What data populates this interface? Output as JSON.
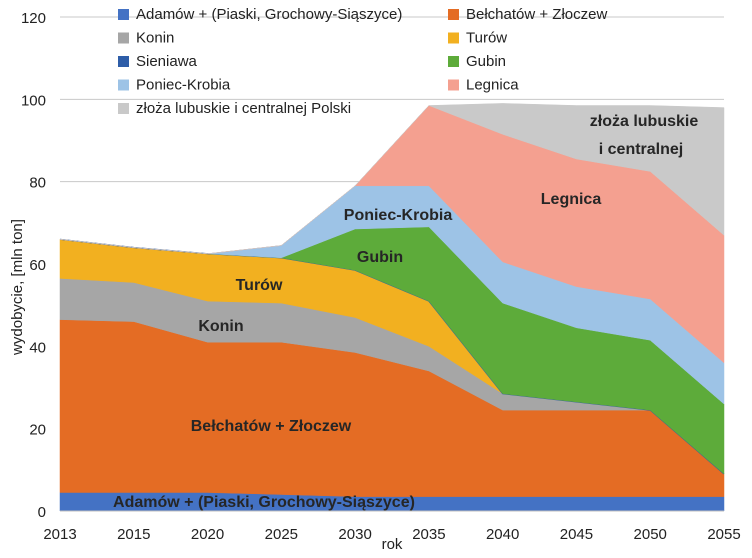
{
  "chart_data": {
    "type": "area",
    "stacked": true,
    "xlabel": "rok",
    "ylabel": "wydobycie, [mln ton]",
    "ylim": [
      0,
      120
    ],
    "yticks": [
      0,
      20,
      40,
      60,
      80,
      100,
      120
    ],
    "x": [
      "2013",
      "2015",
      "2020",
      "2025",
      "2030",
      "2035",
      "2040",
      "2045",
      "2050",
      "2055"
    ],
    "grid": "horizontal",
    "legend_position": "top-left",
    "series": [
      {
        "name": "Adamów + (Piaski, Grochowy-Siąszyce)",
        "color": "#4472C4",
        "values": [
          4.5,
          4.5,
          4.5,
          4,
          3.5,
          3.5,
          3.5,
          3.5,
          3.5,
          3.5
        ]
      },
      {
        "name": "Bełchatów + Złoczew",
        "color": "#E46C24",
        "values": [
          42,
          41.5,
          36.5,
          37,
          35,
          30.5,
          21,
          21,
          21,
          5.5
        ]
      },
      {
        "name": "Konin",
        "color": "#A6A6A6",
        "values": [
          10,
          9.5,
          10,
          9.5,
          8.5,
          6,
          4,
          2,
          0,
          0
        ]
      },
      {
        "name": "Turów",
        "color": "#F2B020",
        "values": [
          9.5,
          8.5,
          11.5,
          11,
          11.5,
          11,
          0,
          0,
          0,
          0
        ]
      },
      {
        "name": "Sieniawa",
        "color": "#2E5DA8",
        "values": [
          0,
          0,
          0,
          0,
          0,
          0,
          0,
          0,
          0,
          0
        ]
      },
      {
        "name": "Gubin",
        "color": "#5DAB3A",
        "values": [
          0,
          0,
          0,
          0,
          10,
          18,
          22,
          18,
          17,
          17
        ]
      },
      {
        "name": "Poniec-Krobia",
        "color": "#9DC3E6",
        "values": [
          0,
          0,
          0,
          3,
          10.5,
          10,
          10,
          10,
          10,
          10
        ]
      },
      {
        "name": "Legnica",
        "color": "#F4A090",
        "values": [
          0,
          0,
          0,
          0,
          0,
          19.5,
          31,
          31,
          31,
          31
        ]
      },
      {
        "name": "złoża lubuskie i centralnej Polski",
        "color": "#C9C9C9",
        "values": [
          0,
          0,
          0,
          0,
          0,
          0,
          7.5,
          13,
          16,
          31
        ]
      }
    ],
    "annotations": [
      {
        "text": "Adamów + (Piaski, Grochowy-Siąszyce)",
        "series": "Adamów + (Piaski, Grochowy-Siąszyce)"
      },
      {
        "text": "Bełchatów + Złoczew",
        "series": "Bełchatów + Złoczew"
      },
      {
        "text": "Konin",
        "series": "Konin"
      },
      {
        "text": "Turów",
        "series": "Turów"
      },
      {
        "text": "Gubin",
        "series": "Gubin"
      },
      {
        "text": "Poniec-Krobia",
        "series": "Poniec-Krobia"
      },
      {
        "text": "Legnica",
        "series": "Legnica"
      },
      {
        "text": "złoża lubuskie",
        "series": "złoża lubuskie i centralnej Polski"
      },
      {
        "text": "i centralnej",
        "series": "złoża lubuskie i centralnej Polski"
      }
    ]
  }
}
